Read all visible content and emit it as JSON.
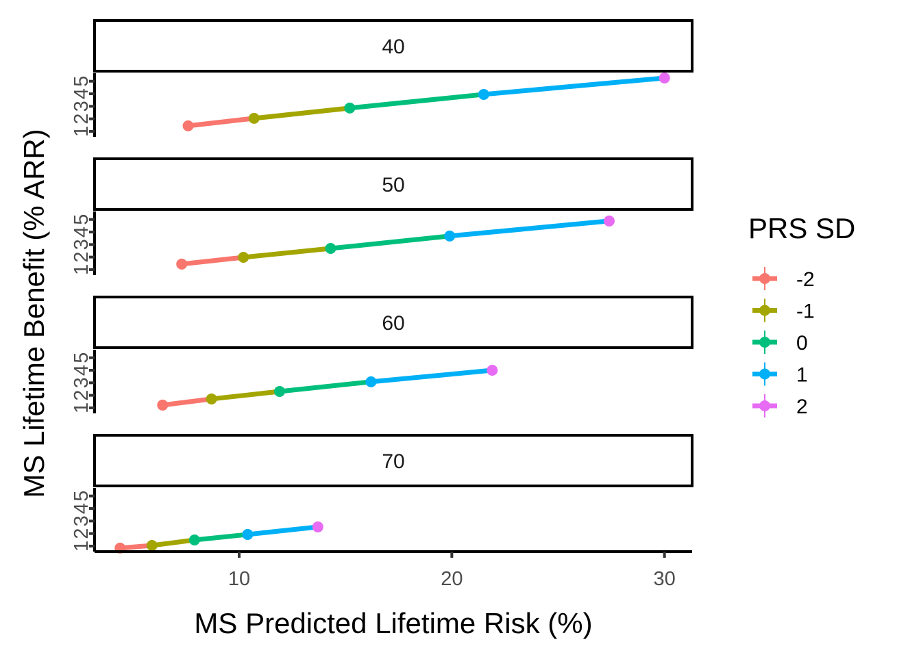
{
  "chart_data": {
    "type": "line",
    "facet_variable": "Age",
    "title": "",
    "xlabel": "MS Predicted Lifetime Risk (%)",
    "ylabel": "MS Lifetime Benefit (% ARR)",
    "xlim": [
      3.2,
      31.3
    ],
    "ylim": [
      0.56,
      5.64
    ],
    "x_ticks": [
      10,
      20,
      30
    ],
    "y_ticks": [
      1,
      2,
      3,
      4,
      5
    ],
    "grid": false,
    "legend": {
      "title": "PRS SD",
      "position": "right",
      "entries": [
        {
          "label": "-2",
          "color": "#F8766D"
        },
        {
          "label": "-1",
          "color": "#A3A500"
        },
        {
          "label": "0",
          "color": "#00BF7D"
        },
        {
          "label": "1",
          "color": "#00B0F6"
        },
        {
          "label": "2",
          "color": "#E76BF3"
        }
      ]
    },
    "panels": [
      {
        "label": "40",
        "points": [
          {
            "prs": "-2",
            "x": 7.6,
            "y": 1.44
          },
          {
            "prs": "-1",
            "x": 10.7,
            "y": 2.04
          },
          {
            "prs": "0",
            "x": 15.2,
            "y": 2.86
          },
          {
            "prs": "1",
            "x": 21.5,
            "y": 3.95
          },
          {
            "prs": "2",
            "x": 30.0,
            "y": 5.26
          }
        ]
      },
      {
        "label": "50",
        "points": [
          {
            "prs": "-2",
            "x": 7.3,
            "y": 1.44
          },
          {
            "prs": "-1",
            "x": 10.2,
            "y": 1.98
          },
          {
            "prs": "0",
            "x": 14.3,
            "y": 2.69
          },
          {
            "prs": "1",
            "x": 19.9,
            "y": 3.68
          },
          {
            "prs": "2",
            "x": 27.4,
            "y": 4.88
          }
        ]
      },
      {
        "label": "60",
        "points": [
          {
            "prs": "-2",
            "x": 6.4,
            "y": 1.22
          },
          {
            "prs": "-1",
            "x": 8.7,
            "y": 1.71
          },
          {
            "prs": "0",
            "x": 11.9,
            "y": 2.31
          },
          {
            "prs": "1",
            "x": 16.2,
            "y": 3.08
          },
          {
            "prs": "2",
            "x": 21.9,
            "y": 4.0
          }
        ]
      },
      {
        "label": "70",
        "points": [
          {
            "prs": "-2",
            "x": 4.4,
            "y": 0.84
          },
          {
            "prs": "-1",
            "x": 5.9,
            "y": 1.05
          },
          {
            "prs": "0",
            "x": 7.9,
            "y": 1.49
          },
          {
            "prs": "1",
            "x": 10.4,
            "y": 1.93
          },
          {
            "prs": "2",
            "x": 13.7,
            "y": 2.53
          }
        ]
      }
    ]
  }
}
